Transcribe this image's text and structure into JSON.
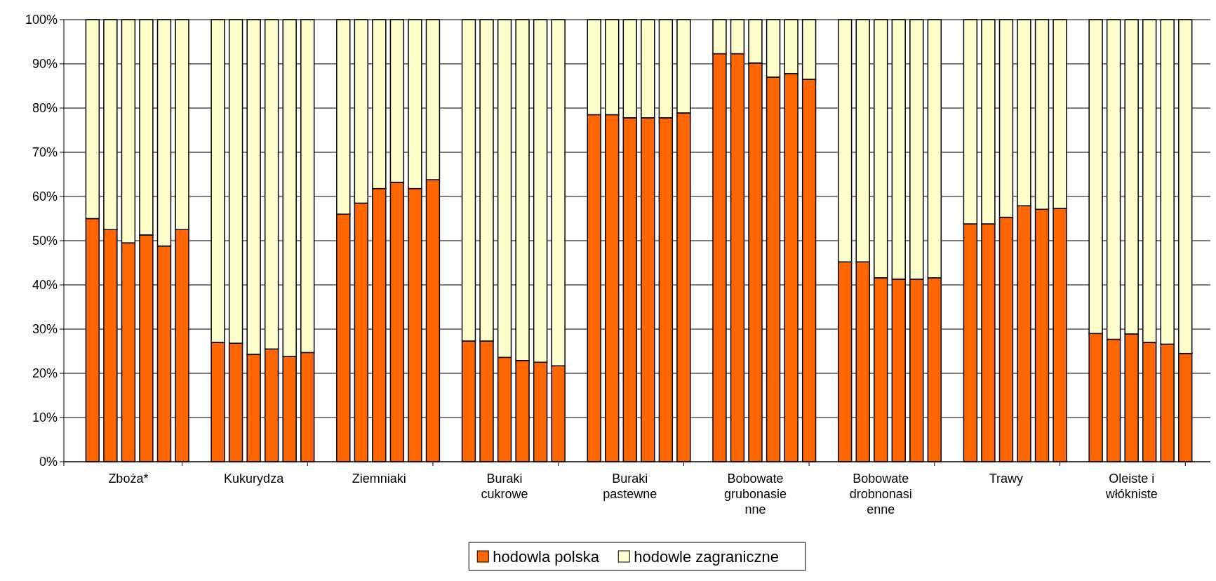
{
  "chart_data": {
    "type": "bar",
    "stacked": true,
    "categories": [
      null,
      null,
      "Zboża*",
      null,
      null,
      null,
      null,
      null,
      "Kukurydza",
      null,
      null,
      null,
      null,
      null,
      "Ziemniaki",
      null,
      null,
      null,
      null,
      null,
      "Buraki\ncukrowe",
      null,
      null,
      null,
      null,
      null,
      "Buraki\npastewne",
      null,
      null,
      null,
      null,
      null,
      "Bobowate\ngrubonasie\nnne",
      null,
      null,
      null,
      null,
      null,
      "Bobowate\ndrobnonasi\nenne",
      null,
      null,
      null,
      null,
      null,
      "Trawy",
      null,
      null,
      null,
      null,
      null,
      "Oleiste i\nwłókniste",
      null,
      null,
      null
    ],
    "series": [
      {
        "name": "hodowla polska",
        "color": "#ff6600",
        "values": [
          55,
          52.5,
          49.5,
          51.3,
          48.8,
          52.5,
          27,
          26.8,
          24.3,
          25.5,
          23.8,
          24.7,
          56,
          58.5,
          61.8,
          63.2,
          61.8,
          63.8,
          27.3,
          27.3,
          23.6,
          22.9,
          22.5,
          21.7,
          78.5,
          78.5,
          77.8,
          77.8,
          77.8,
          78.9,
          92.3,
          92.3,
          90.2,
          87,
          87.8,
          86.5,
          45.2,
          45.2,
          41.6,
          41.3,
          41.3,
          41.6,
          53.8,
          53.8,
          55.3,
          57.9,
          57.1,
          57.3,
          29,
          27.7,
          28.9,
          27,
          26.6,
          24.5
        ]
      },
      {
        "name": "hodowle zagraniczne",
        "color": "#ffffcc",
        "values": [
          45,
          47.5,
          50.5,
          48.7,
          51.2,
          47.5,
          73,
          73.2,
          75.7,
          74.5,
          76.2,
          75.3,
          44,
          41.5,
          38.2,
          36.8,
          38.2,
          36.2,
          72.7,
          72.7,
          76.4,
          77.1,
          77.5,
          78.3,
          21.5,
          21.5,
          22.2,
          22.2,
          22.2,
          21.1,
          7.7,
          7.7,
          9.8,
          13,
          12.2,
          13.5,
          54.8,
          54.8,
          58.4,
          58.7,
          58.7,
          58.4,
          46.2,
          46.2,
          44.7,
          42.1,
          42.9,
          42.7,
          71,
          72.3,
          71.1,
          73,
          73.4,
          75.5
        ]
      }
    ],
    "ylim": [
      0,
      100
    ],
    "yticks": [
      {
        "value": 0,
        "label": "0%"
      },
      {
        "value": 10,
        "label": "10%"
      },
      {
        "value": 20,
        "label": "20%"
      },
      {
        "value": 30,
        "label": "30%"
      },
      {
        "value": 40,
        "label": "40%"
      },
      {
        "value": 50,
        "label": "50%"
      },
      {
        "value": 60,
        "label": "60%"
      },
      {
        "value": 70,
        "label": "70%"
      },
      {
        "value": 80,
        "label": "80%"
      },
      {
        "value": 90,
        "label": "90%"
      },
      {
        "value": 100,
        "label": "100%"
      }
    ],
    "grid": "y",
    "legend": "bottom"
  }
}
